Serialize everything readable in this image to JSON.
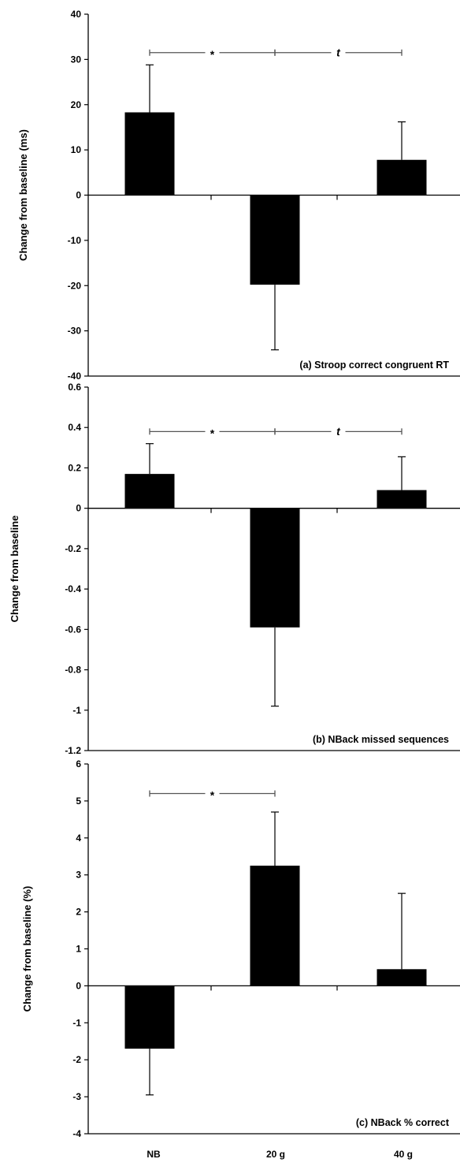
{
  "categories": [
    "NB",
    "20 g",
    "40 g"
  ],
  "colors": {
    "bar": "#000000",
    "axis": "#000000",
    "bracket": "#555555"
  },
  "chart_data": [
    {
      "type": "bar",
      "title": "",
      "annotation": "(a) Stroop correct congruent RT",
      "xlabel": "",
      "ylabel": "Change from baseline (ms)",
      "ylim": [
        -40,
        40
      ],
      "yticks": [
        40,
        30,
        20,
        10,
        0,
        -10,
        -20,
        -30,
        -40
      ],
      "categories": [
        "NB",
        "20 g",
        "40 g"
      ],
      "values": [
        18.3,
        -19.8,
        7.8
      ],
      "errors": [
        10.5,
        14.4,
        8.4
      ],
      "significance": [
        {
          "from": 0,
          "to": 1,
          "label": "*"
        },
        {
          "from": 1,
          "to": 2,
          "label": "t"
        }
      ],
      "bracket_level": 31.5,
      "grid": false,
      "legend": "none"
    },
    {
      "type": "bar",
      "title": "",
      "annotation": "(b) NBack missed sequences",
      "xlabel": "",
      "ylabel": "Change from baseline",
      "ylim": [
        -1.2,
        0.6
      ],
      "yticks": [
        0.6,
        0.4,
        0.2,
        0,
        -0.2,
        -0.4,
        -0.6,
        -0.8,
        -1,
        -1.2
      ],
      "categories": [
        "NB",
        "20 g",
        "40 g"
      ],
      "values": [
        0.17,
        -0.59,
        0.09
      ],
      "errors": [
        0.15,
        0.39,
        0.165
      ],
      "significance": [
        {
          "from": 0,
          "to": 1,
          "label": "*"
        },
        {
          "from": 1,
          "to": 2,
          "label": "t"
        }
      ],
      "bracket_level": 0.38,
      "grid": false,
      "legend": "none"
    },
    {
      "type": "bar",
      "title": "",
      "annotation": "(c) NBack % correct",
      "xlabel": "",
      "ylabel": "Change from baseline (%)",
      "ylim": [
        -4,
        6
      ],
      "yticks": [
        6,
        5,
        4,
        3,
        2,
        1,
        0,
        -1,
        -2,
        -3,
        -4
      ],
      "categories": [
        "NB",
        "20 g",
        "40 g"
      ],
      "values": [
        -1.7,
        3.25,
        0.45
      ],
      "errors": [
        1.25,
        1.45,
        2.05
      ],
      "significance": [
        {
          "from": 0,
          "to": 1,
          "label": "*"
        }
      ],
      "bracket_level": 5.2,
      "grid": false,
      "legend": "none"
    }
  ]
}
